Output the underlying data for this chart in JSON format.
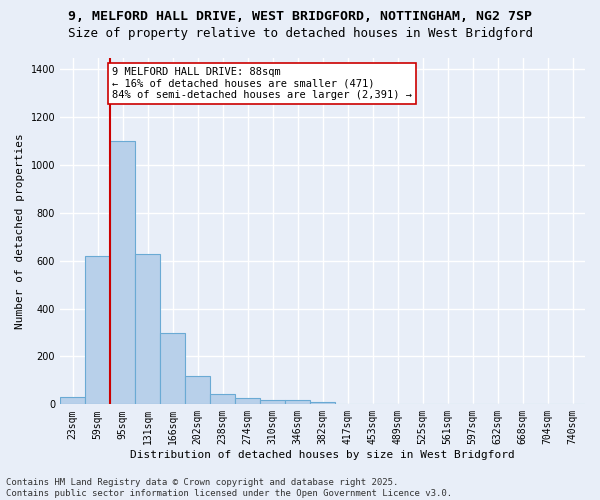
{
  "title_line1": "9, MELFORD HALL DRIVE, WEST BRIDGFORD, NOTTINGHAM, NG2 7SP",
  "title_line2": "Size of property relative to detached houses in West Bridgford",
  "xlabel": "Distribution of detached houses by size in West Bridgford",
  "ylabel": "Number of detached properties",
  "categories": [
    "23sqm",
    "59sqm",
    "95sqm",
    "131sqm",
    "166sqm",
    "202sqm",
    "238sqm",
    "274sqm",
    "310sqm",
    "346sqm",
    "382sqm",
    "417sqm",
    "453sqm",
    "489sqm",
    "525sqm",
    "561sqm",
    "597sqm",
    "632sqm",
    "668sqm",
    "704sqm",
    "740sqm"
  ],
  "values": [
    30,
    620,
    1100,
    630,
    300,
    120,
    45,
    25,
    20,
    20,
    10,
    0,
    0,
    0,
    0,
    0,
    0,
    0,
    0,
    0,
    0
  ],
  "bar_color": "#b8d0ea",
  "bar_edge_color": "#6aaad4",
  "vline_color": "#cc0000",
  "vline_xindex": 2.0,
  "annotation_text": "9 MELFORD HALL DRIVE: 88sqm\n← 16% of detached houses are smaller (471)\n84% of semi-detached houses are larger (2,391) →",
  "annotation_box_color": "#ffffff",
  "annotation_box_edge": "#cc0000",
  "ylim": [
    0,
    1450
  ],
  "yticks": [
    0,
    200,
    400,
    600,
    800,
    1000,
    1200,
    1400
  ],
  "bg_color": "#e8eef8",
  "grid_color": "#ffffff",
  "footer": "Contains HM Land Registry data © Crown copyright and database right 2025.\nContains public sector information licensed under the Open Government Licence v3.0.",
  "title_fontsize": 9.5,
  "subtitle_fontsize": 9.0,
  "axis_label_fontsize": 8.0,
  "tick_fontsize": 7.0,
  "annotation_fontsize": 7.5,
  "footer_fontsize": 6.5
}
